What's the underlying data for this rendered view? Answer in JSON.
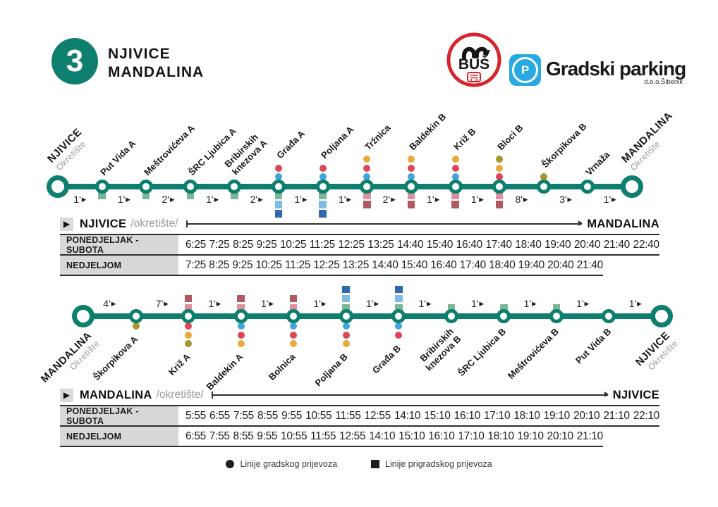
{
  "palette": {
    "teal": "#0E7F6E",
    "red": "#DF4557",
    "blue": "#3FA5DB",
    "yellow": "#E9A93B",
    "olive": "#A4952F",
    "green": "#7BB795",
    "lightblue": "#7FBCE3",
    "darkblue": "#2F68AF",
    "pink": "#DD909D",
    "darkred": "#AF5A63",
    "bus_red": "#D7242B",
    "parking_blue": "#29A9E1"
  },
  "time_arrow": "▶",
  "header": {
    "route_number": "3",
    "route_name_line1": "NJIVICE",
    "route_name_line2": "MANDALINA",
    "bus_logo": "BUŠ",
    "parking_letter": "P",
    "parking_brand": "Gradski parking",
    "parking_sub": "d.o.o.Šibenik"
  },
  "diagram_top": {
    "stops": [
      {
        "name": "NJIVICE",
        "sub": "Okretište",
        "terminal": true
      },
      {
        "name": "Put Vida",
        "suffix": "A",
        "squares": [
          "green"
        ]
      },
      {
        "name": "Meštrovićeva",
        "suffix": "A",
        "squares": [
          "green"
        ]
      },
      {
        "name": "ŠRC Ljubica",
        "suffix": "A",
        "squares": [
          "green"
        ]
      },
      {
        "name": "Bribirskih",
        "name2": "knezova",
        "suffix": "A",
        "squares": [
          "green"
        ]
      },
      {
        "name": "Građa",
        "suffix": "A",
        "dots": [
          "red",
          "blue"
        ],
        "squares": [
          "green",
          "lightblue",
          "darkblue"
        ]
      },
      {
        "name": "Poljana",
        "suffix": "A",
        "dots": [
          "red",
          "blue"
        ],
        "squares": [
          "green",
          "lightblue",
          "darkblue"
        ]
      },
      {
        "name": "Tržnica",
        "dots": [
          "yellow",
          "red",
          "blue"
        ],
        "squares": [
          "pink",
          "darkred"
        ]
      },
      {
        "name": "Baldekin",
        "suffix": "B",
        "dots": [
          "yellow",
          "red",
          "blue"
        ],
        "squares": [
          "pink",
          "darkred"
        ]
      },
      {
        "name": "Križ",
        "suffix": "B",
        "dots": [
          "yellow",
          "red",
          "blue"
        ],
        "squares": [
          "pink",
          "darkred"
        ]
      },
      {
        "name": "Bloci",
        "suffix": "B",
        "dots": [
          "olive",
          "yellow",
          "red"
        ],
        "squares": [
          "pink",
          "darkred"
        ]
      },
      {
        "name": "Škorpikova",
        "suffix": "B",
        "dots": [
          "olive"
        ]
      },
      {
        "name": "Vrnaža"
      },
      {
        "name": "MANDALINA",
        "sub": "Okretište",
        "terminal": true
      }
    ],
    "segment_times": [
      "1'",
      "1'",
      "2'",
      "1'",
      "2'",
      "1'",
      "1'",
      "2'",
      "1'",
      "1'",
      "8'",
      "3'",
      "1'"
    ]
  },
  "diagram_bottom": {
    "stops": [
      {
        "name": "MANDALINA",
        "sub": "Okretište",
        "terminal": true
      },
      {
        "name": "Škorpikova",
        "suffix": "A",
        "dots": [
          "olive"
        ]
      },
      {
        "name": "Križ",
        "suffix": "A",
        "squares": [
          "darkred",
          "pink"
        ],
        "dots": [
          "red",
          "yellow",
          "olive"
        ]
      },
      {
        "name": "Baldekin",
        "suffix": "A",
        "squares": [
          "darkred",
          "pink"
        ],
        "dots": [
          "blue",
          "red",
          "yellow"
        ]
      },
      {
        "name": "Bolnica",
        "squares": [
          "darkred",
          "pink"
        ],
        "dots": [
          "blue",
          "red",
          "yellow"
        ]
      },
      {
        "name": "Poljana",
        "suffix": "B",
        "squares": [
          "darkblue",
          "lightblue",
          "green"
        ],
        "dots": [
          "blue",
          "red",
          "yellow"
        ]
      },
      {
        "name": "Građa",
        "suffix": "B",
        "squares": [
          "darkblue",
          "lightblue",
          "green"
        ],
        "dots": [
          "blue",
          "red"
        ]
      },
      {
        "name": "Bribirskih",
        "name2": "knezova",
        "suffix": "B",
        "squares": [
          "green"
        ]
      },
      {
        "name": "ŠRC Ljubica",
        "suffix": "B",
        "squares": [
          "green"
        ]
      },
      {
        "name": "Meštrovićeva",
        "suffix": "B",
        "squares": [
          "green"
        ]
      },
      {
        "name": "Put Vida",
        "suffix": "B"
      },
      {
        "name": "NJIVICE",
        "sub": "Okretište",
        "terminal": true
      }
    ],
    "segment_times": [
      "4'",
      "7'",
      "1'",
      "1'",
      "1'",
      "1'",
      "1'",
      "1'",
      "1'",
      "1'",
      "1'"
    ]
  },
  "table1": {
    "origin": "NJIVICE",
    "origin_sub": "/okretište/",
    "destination": "MANDALINA",
    "rows": [
      {
        "label": "PONEDJELJAK - SUBOTA",
        "times": [
          "6:25",
          "7:25",
          "8:25",
          "9:25",
          "10:25",
          "11:25",
          "12:25",
          "13:25",
          "14:40",
          "15:40",
          "16:40",
          "17:40",
          "18:40",
          "19:40",
          "20:40",
          "21:40",
          "22:40"
        ]
      },
      {
        "label": "NEDJELJOM",
        "times": [
          "7:25",
          "8:25",
          "9:25",
          "10:25",
          "11:25",
          "12:25",
          "13:25",
          "14:40",
          "15:40",
          "16:40",
          "17:40",
          "18:40",
          "19:40",
          "20:40",
          "21:40"
        ]
      }
    ]
  },
  "table2": {
    "origin": "MANDALINA",
    "origin_sub": "/okretište/",
    "destination": "NJIVICE",
    "rows": [
      {
        "label": "PONEDJELJAK - SUBOTA",
        "times": [
          "5:55",
          "6:55",
          "7:55",
          "8:55",
          "9:55",
          "10:55",
          "11:55",
          "12:55",
          "14:10",
          "15:10",
          "16:10",
          "17:10",
          "18:10",
          "19:10",
          "20:10",
          "21:10",
          "22:10"
        ]
      },
      {
        "label": "NEDJELJOM",
        "times": [
          "6:55",
          "7:55",
          "8:55",
          "9:55",
          "10:55",
          "11:55",
          "12:55",
          "14:10",
          "15:10",
          "16:10",
          "17:10",
          "18:10",
          "19:10",
          "20:10",
          "21:10"
        ]
      }
    ]
  },
  "legend": {
    "city": "Linije gradskog prijevoza",
    "suburban": "Linije prigradskog prijevoza"
  }
}
